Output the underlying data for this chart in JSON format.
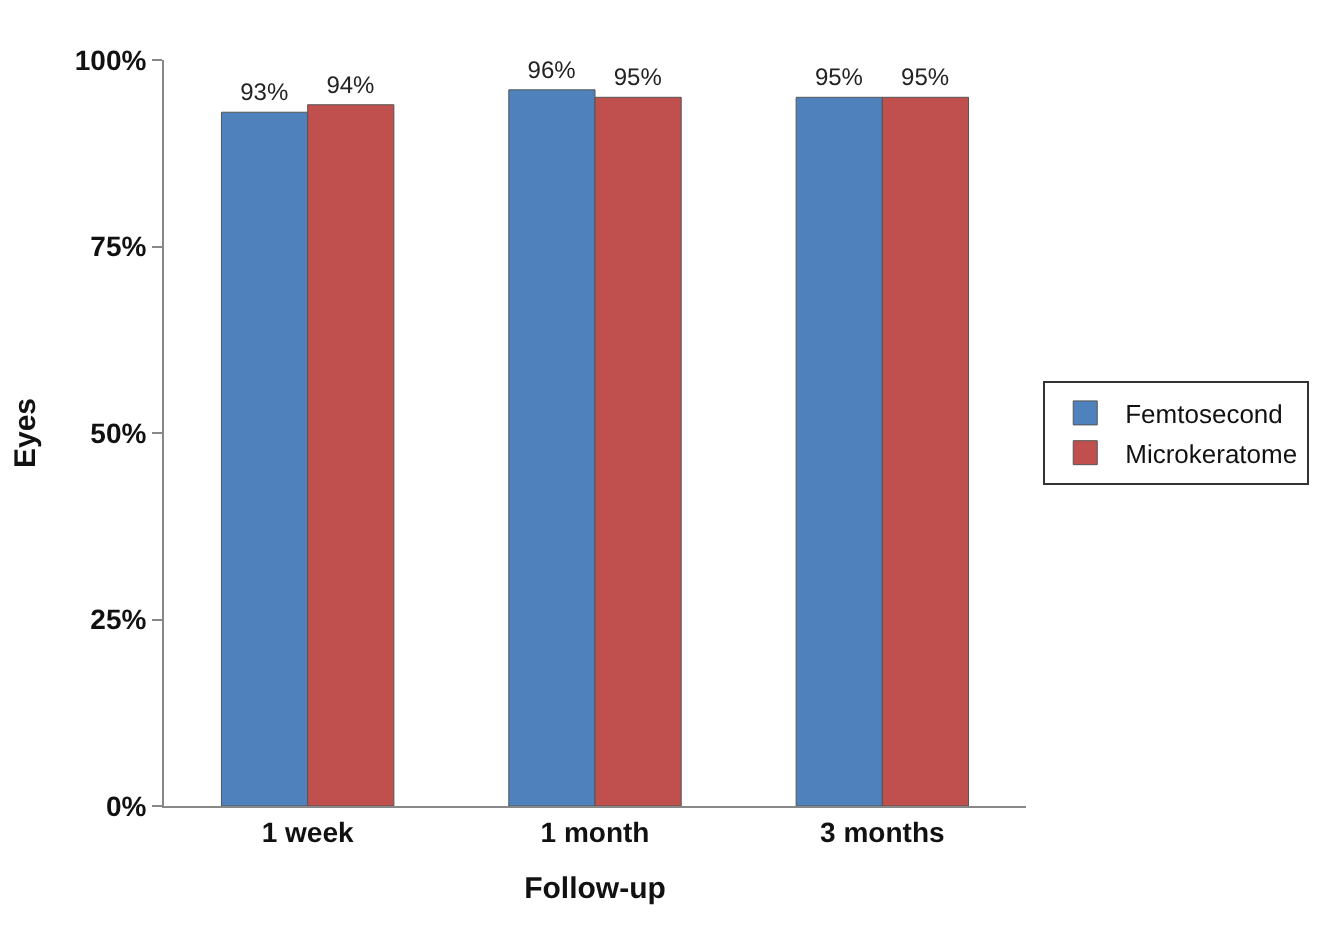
{
  "chart_data": {
    "type": "bar",
    "xlabel": "Follow-up",
    "ylabel": "Eyes",
    "categories": [
      "1 week",
      "1 month",
      "3 months"
    ],
    "series": [
      {
        "name": "Femtosecond",
        "color": "#4f81bd",
        "values": [
          93,
          96,
          95
        ],
        "value_labels": [
          "93%",
          "96%",
          "95%"
        ]
      },
      {
        "name": "Microkeratome",
        "color": "#c0504d",
        "values": [
          94,
          95,
          95
        ],
        "value_labels": [
          "94%",
          "95%",
          "95%"
        ]
      }
    ],
    "ylim": [
      0,
      100
    ],
    "yticks": [
      {
        "value": 0,
        "label": "0%"
      },
      {
        "value": 25,
        "label": "25%"
      },
      {
        "value": 50,
        "label": "50%"
      },
      {
        "value": 75,
        "label": "75%"
      },
      {
        "value": 100,
        "label": "100%"
      }
    ],
    "legend": "right"
  }
}
